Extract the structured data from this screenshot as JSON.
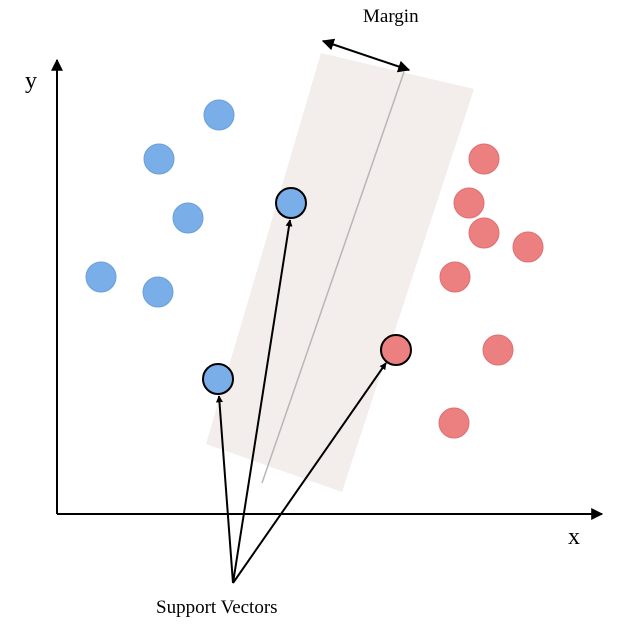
{
  "labels": {
    "y_axis": "y",
    "x_axis": "x",
    "margin": "Margin",
    "support_vectors": "Support Vectors"
  },
  "colors": {
    "class_blue": "#7aaee8",
    "class_red": "#ec7f7f",
    "margin_band": "#f3eeec",
    "hyperplane": "#b7b7b7",
    "axes": "#000000"
  }
}
